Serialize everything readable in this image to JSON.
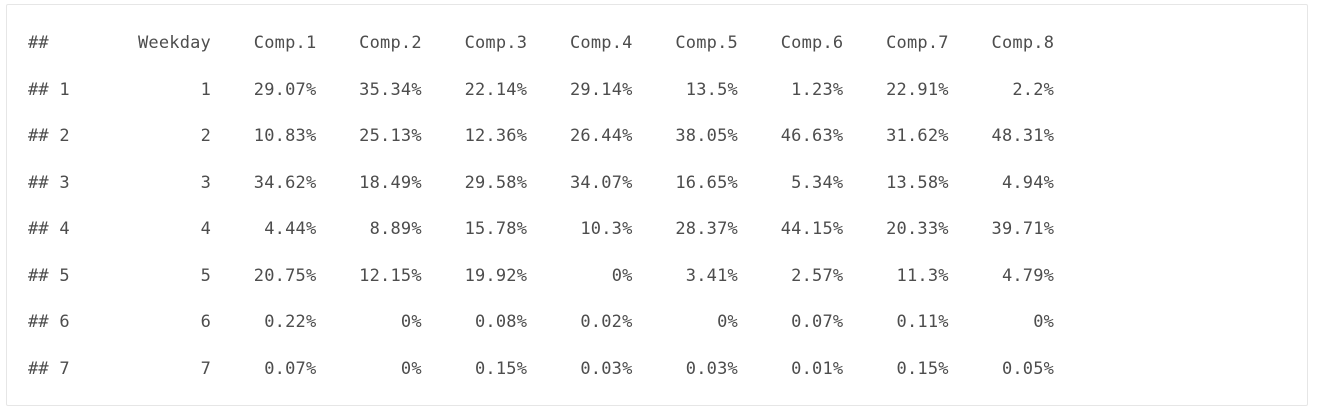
{
  "table": {
    "comment_prefix": "##",
    "columns": [
      "Weekday",
      "Comp.1",
      "Comp.2",
      "Comp.3",
      "Comp.4",
      "Comp.5",
      "Comp.6",
      "Comp.7",
      "Comp.8"
    ],
    "rows": [
      {
        "index": "1",
        "cells": [
          "1",
          "29.07%",
          "35.34%",
          "22.14%",
          "29.14%",
          "13.5%",
          "1.23%",
          "22.91%",
          "2.2%"
        ]
      },
      {
        "index": "2",
        "cells": [
          "2",
          "10.83%",
          "25.13%",
          "12.36%",
          "26.44%",
          "38.05%",
          "46.63%",
          "31.62%",
          "48.31%"
        ]
      },
      {
        "index": "3",
        "cells": [
          "3",
          "34.62%",
          "18.49%",
          "29.58%",
          "34.07%",
          "16.65%",
          "5.34%",
          "13.58%",
          "4.94%"
        ]
      },
      {
        "index": "4",
        "cells": [
          "4",
          "4.44%",
          "8.89%",
          "15.78%",
          "10.3%",
          "28.37%",
          "44.15%",
          "20.33%",
          "39.71%"
        ]
      },
      {
        "index": "5",
        "cells": [
          "5",
          "20.75%",
          "12.15%",
          "19.92%",
          "0%",
          "3.41%",
          "2.57%",
          "11.3%",
          "4.79%"
        ]
      },
      {
        "index": "6",
        "cells": [
          "6",
          "0.22%",
          "0%",
          "0.08%",
          "0.02%",
          "0%",
          "0.07%",
          "0.11%",
          "0%"
        ]
      },
      {
        "index": "7",
        "cells": [
          "7",
          "0.07%",
          "0%",
          "0.15%",
          "0.03%",
          "0.03%",
          "0.01%",
          "0.15%",
          "0.05%"
        ]
      }
    ]
  }
}
